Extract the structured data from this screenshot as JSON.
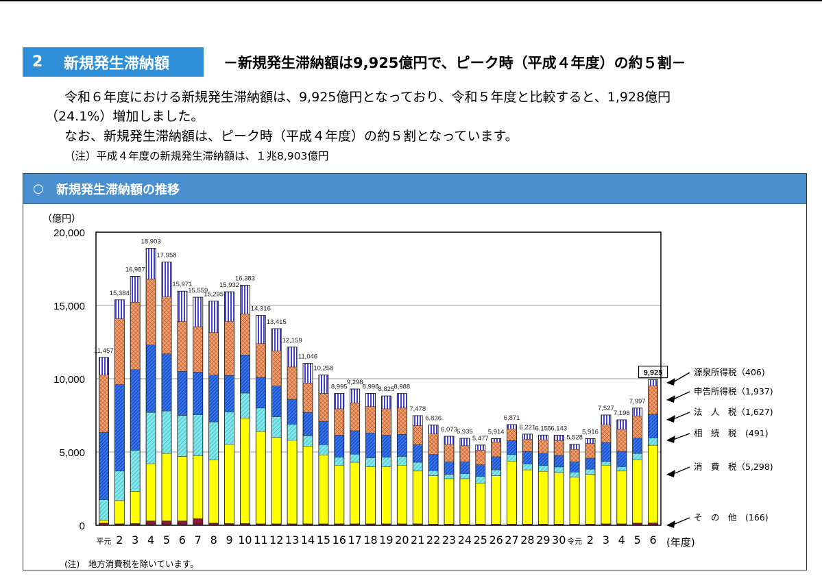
{
  "section": {
    "number": "2",
    "title": "新規発生滞納額",
    "headline": "－新規発生滞納額は9,925億円で、ピーク時（平成４年度）の約５割－"
  },
  "body": {
    "line1": "令和６年度における新規発生滞納額は、9,925億円となっており、令和５年度と比較すると、1,928億円",
    "line2": "（24.1%）増加しました。",
    "line3": "なお、新規発生滞納額は、ピーク時（平成４年度）の約５割となっています。",
    "note": "（注）平成４年度の新規発生滞納額は、１兆8,903億円"
  },
  "panel": {
    "marker": "○",
    "title": "新規発生滞納額の推移"
  },
  "footnote": "(注)　地方消費税を除いています。",
  "colors": {
    "other": "#8b1a3a",
    "consumption": "#ffff00",
    "inheritance": "#7fe6ea",
    "corporate": "#1f5bd6",
    "self_assessment": "#f0a070",
    "withholding": "#4040d8",
    "badge": "#2e8fd8",
    "panel_header": "#4a90d0"
  },
  "chart_data": {
    "type": "bar",
    "stacked": true,
    "unit_label": "（億円）",
    "xlabel": "(年度)",
    "ylim": [
      0,
      20000
    ],
    "yticks": [
      0,
      5000,
      10000,
      15000,
      20000
    ],
    "ytick_labels": [
      "0",
      "5,000",
      "10,000",
      "15,000",
      "20,000"
    ],
    "grid": true,
    "categories": [
      "平元",
      "2",
      "3",
      "4",
      "5",
      "6",
      "7",
      "8",
      "9",
      "10",
      "11",
      "12",
      "13",
      "14",
      "15",
      "16",
      "17",
      "18",
      "19",
      "20",
      "21",
      "22",
      "23",
      "24",
      "25",
      "26",
      "27",
      "28",
      "29",
      "30",
      "令元",
      "2",
      "3",
      "4",
      "5",
      "6"
    ],
    "totals": [
      11457,
      15384,
      16987,
      18903,
      17958,
      15971,
      15559,
      15295,
      15932,
      16383,
      14316,
      13415,
      12159,
      11046,
      10258,
      8995,
      9298,
      8998,
      8825,
      8988,
      7478,
      6836,
      6073,
      5935,
      5477,
      5914,
      6871,
      6221,
      6155,
      6143,
      5528,
      5916,
      7527,
      7196,
      7997,
      9925
    ],
    "total_labels": [
      "11,457",
      "15,384",
      "16,987",
      "18,903",
      "17,958",
      "15,971",
      "15,559",
      "15,295",
      "15,932",
      "16,383",
      "14,316",
      "13,415",
      "12,159",
      "11,046",
      "10,258",
      "8,995",
      "9,298",
      "8,998",
      "8,825",
      "8,988",
      "7,478",
      "6,836",
      "6,073",
      "5,935",
      "5,477",
      "5,914",
      "6,871",
      "6,221",
      "6,155",
      "6,143",
      "5,528",
      "5,916",
      "7,527",
      "7,196",
      "7,997",
      "9,925"
    ],
    "highlight_index": 35,
    "series": [
      {
        "key": "other",
        "values": [
          150,
          100,
          120,
          300,
          300,
          300,
          450,
          150,
          120,
          120,
          100,
          100,
          100,
          100,
          100,
          100,
          100,
          100,
          100,
          100,
          100,
          80,
          80,
          80,
          80,
          80,
          80,
          80,
          80,
          80,
          80,
          80,
          100,
          100,
          150,
          166
        ]
      },
      {
        "key": "consumption",
        "values": [
          200,
          1600,
          2200,
          3900,
          4600,
          4400,
          4300,
          4300,
          5400,
          7200,
          6300,
          5900,
          5700,
          5300,
          4700,
          4000,
          4200,
          3900,
          3900,
          4000,
          3600,
          3300,
          3100,
          3100,
          2800,
          3300,
          4300,
          3700,
          3600,
          3500,
          3200,
          3400,
          4000,
          3600,
          4300,
          5298
        ]
      },
      {
        "key": "inheritance",
        "values": [
          1400,
          2000,
          2800,
          3500,
          2900,
          2800,
          2800,
          2600,
          2200,
          1700,
          1600,
          1400,
          1100,
          700,
          700,
          550,
          550,
          600,
          650,
          600,
          600,
          350,
          300,
          350,
          450,
          400,
          450,
          400,
          400,
          400,
          350,
          350,
          250,
          300,
          450,
          491
        ]
      },
      {
        "key": "corporate",
        "values": [
          4600,
          5900,
          5500,
          4600,
          3900,
          3000,
          2900,
          3200,
          2500,
          2600,
          2100,
          2100,
          1700,
          1600,
          1600,
          1500,
          1600,
          1700,
          1500,
          1500,
          1200,
          1100,
          850,
          800,
          800,
          900,
          950,
          850,
          850,
          800,
          700,
          750,
          1300,
          1050,
          1050,
          1627
        ]
      },
      {
        "key": "self_assessment",
        "values": [
          3900,
          4500,
          4600,
          4500,
          3900,
          3400,
          3100,
          2900,
          3700,
          2800,
          2300,
          2400,
          2200,
          2000,
          1900,
          1800,
          1900,
          1800,
          1800,
          1800,
          1300,
          1400,
          1200,
          1100,
          1000,
          1000,
          800,
          850,
          900,
          1000,
          850,
          1000,
          1200,
          1500,
          1500,
          1937
        ]
      },
      {
        "key": "withholding",
        "values": [
          1207,
          1284,
          1767,
          2103,
          2358,
          2071,
          2009,
          2145,
          2012,
          1963,
          1916,
          1515,
          1359,
          1346,
          1258,
          1045,
          948,
          898,
          875,
          988,
          678,
          606,
          543,
          505,
          347,
          234,
          291,
          341,
          325,
          363,
          348,
          336,
          677,
          646,
          547,
          406
        ]
      }
    ],
    "legend": [
      {
        "key": "withholding",
        "label": "源泉所得税（406)"
      },
      {
        "key": "self_assessment",
        "label": "申告所得税（1,937)"
      },
      {
        "key": "corporate",
        "label": "法　人　税（1,627)"
      },
      {
        "key": "inheritance",
        "label": "相　続　税　(491)"
      },
      {
        "key": "consumption",
        "label": "消　費　税（5,298)"
      },
      {
        "key": "other",
        "label": "そ　の　他　(166)"
      }
    ]
  }
}
